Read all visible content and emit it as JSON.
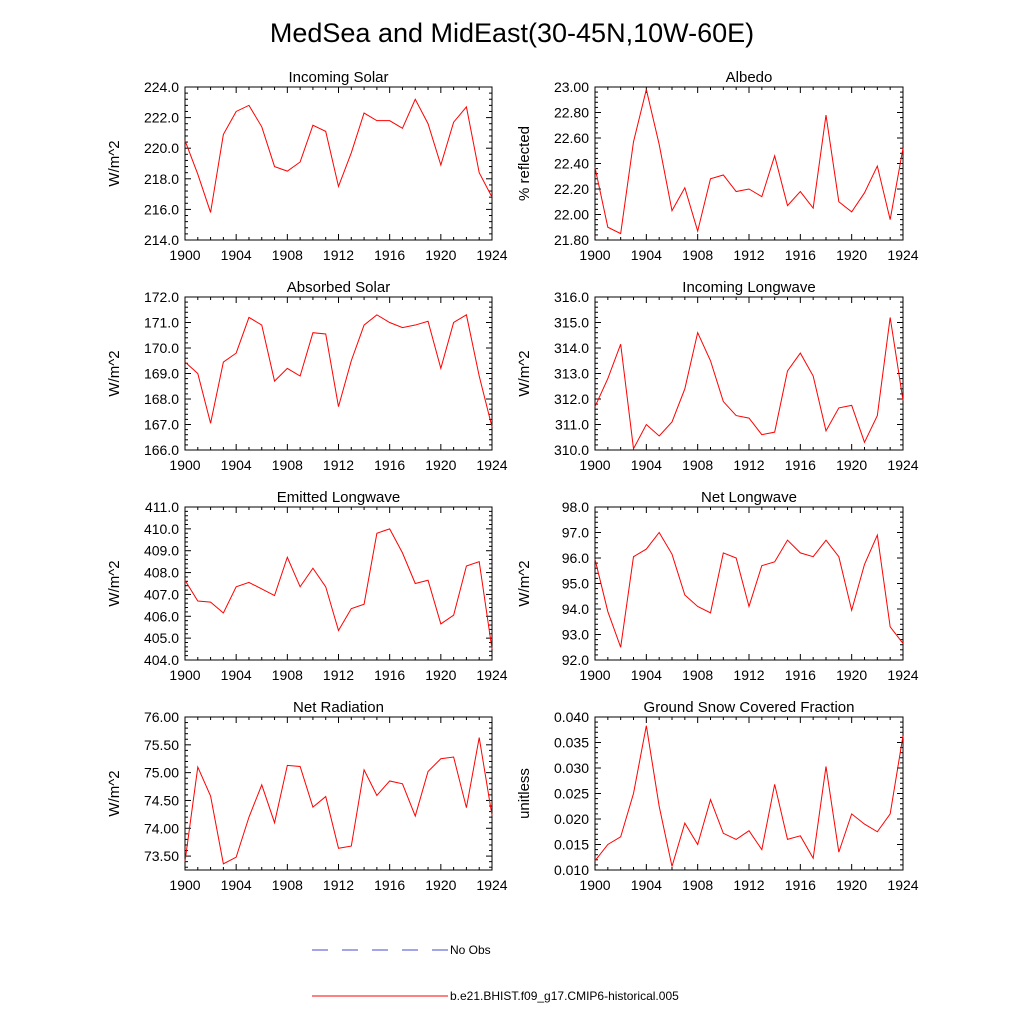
{
  "title": "MedSea and MidEast(30-45N,10W-60E)",
  "colors": {
    "model": "#ff0000",
    "obs": "#4a4ad0",
    "axis": "#000000"
  },
  "legend": {
    "obs_label": "No Obs",
    "model_label": "b.e21.BHIST.f09_g17.CMIP6-historical.005"
  },
  "chart_data": [
    {
      "type": "line",
      "title": "Incoming Solar",
      "ylabel": "W/m^2",
      "xlim": [
        1900,
        1924
      ],
      "ylim": [
        214,
        224
      ],
      "xticks": [
        1900,
        1904,
        1908,
        1912,
        1916,
        1920,
        1924
      ],
      "yticks": [
        214,
        216,
        218,
        220,
        222,
        224
      ],
      "yfmt": 1,
      "x": [
        1900,
        1901,
        1902,
        1903,
        1904,
        1905,
        1906,
        1907,
        1908,
        1909,
        1910,
        1911,
        1912,
        1913,
        1914,
        1915,
        1916,
        1917,
        1918,
        1919,
        1920,
        1921,
        1922,
        1923,
        1924
      ],
      "series": [
        {
          "name": "b.e21.BHIST.f09_g17.CMIP6-historical.005",
          "values": [
            220.5,
            218.3,
            215.8,
            220.9,
            222.4,
            222.8,
            221.4,
            218.8,
            218.5,
            219.1,
            221.5,
            221.1,
            217.5,
            219.7,
            222.3,
            221.8,
            221.8,
            221.3,
            223.2,
            221.6,
            218.9,
            221.7,
            222.7,
            218.4,
            216.8
          ]
        }
      ]
    },
    {
      "type": "line",
      "title": "Albedo",
      "ylabel": "% reflected",
      "xlim": [
        1900,
        1924
      ],
      "ylim": [
        21.8,
        23.0
      ],
      "xticks": [
        1900,
        1904,
        1908,
        1912,
        1916,
        1920,
        1924
      ],
      "yticks": [
        21.8,
        22.0,
        22.2,
        22.4,
        22.6,
        22.8,
        23.0
      ],
      "yfmt": 2,
      "x": [
        1900,
        1901,
        1902,
        1903,
        1904,
        1905,
        1906,
        1907,
        1908,
        1909,
        1910,
        1911,
        1912,
        1913,
        1914,
        1915,
        1916,
        1917,
        1918,
        1919,
        1920,
        1921,
        1922,
        1923,
        1924
      ],
      "series": [
        {
          "name": "b.e21.BHIST.f09_g17.CMIP6-historical.005",
          "values": [
            22.37,
            21.9,
            21.85,
            22.57,
            22.98,
            22.55,
            22.03,
            22.21,
            21.87,
            22.28,
            22.31,
            22.18,
            22.2,
            22.14,
            22.46,
            22.07,
            22.18,
            22.05,
            22.78,
            22.1,
            22.02,
            22.17,
            22.38,
            21.96,
            22.52
          ]
        }
      ]
    },
    {
      "type": "line",
      "title": "Absorbed Solar",
      "ylabel": "W/m^2",
      "xlim": [
        1900,
        1924
      ],
      "ylim": [
        166,
        172
      ],
      "xticks": [
        1900,
        1904,
        1908,
        1912,
        1916,
        1920,
        1924
      ],
      "yticks": [
        166,
        167,
        168,
        169,
        170,
        171,
        172
      ],
      "yfmt": 1,
      "x": [
        1900,
        1901,
        1902,
        1903,
        1904,
        1905,
        1906,
        1907,
        1908,
        1909,
        1910,
        1911,
        1912,
        1913,
        1914,
        1915,
        1916,
        1917,
        1918,
        1919,
        1920,
        1921,
        1922,
        1923,
        1924
      ],
      "series": [
        {
          "name": "b.e21.BHIST.f09_g17.CMIP6-historical.005",
          "values": [
            169.45,
            169.0,
            167.05,
            169.45,
            169.8,
            171.2,
            170.9,
            168.7,
            169.2,
            168.9,
            170.6,
            170.55,
            167.7,
            169.5,
            170.9,
            171.3,
            171.0,
            170.8,
            170.9,
            171.05,
            169.2,
            171.0,
            171.3,
            168.9,
            166.9
          ]
        }
      ]
    },
    {
      "type": "line",
      "title": "Incoming Longwave",
      "ylabel": "W/m^2",
      "xlim": [
        1900,
        1924
      ],
      "ylim": [
        310,
        316
      ],
      "xticks": [
        1900,
        1904,
        1908,
        1912,
        1916,
        1920,
        1924
      ],
      "yticks": [
        310,
        311,
        312,
        313,
        314,
        315,
        316
      ],
      "yfmt": 1,
      "x": [
        1900,
        1901,
        1902,
        1903,
        1904,
        1905,
        1906,
        1907,
        1908,
        1909,
        1910,
        1911,
        1912,
        1913,
        1914,
        1915,
        1916,
        1917,
        1918,
        1919,
        1920,
        1921,
        1922,
        1923,
        1924
      ],
      "series": [
        {
          "name": "b.e21.BHIST.f09_g17.CMIP6-historical.005",
          "values": [
            311.7,
            312.8,
            314.15,
            310.05,
            311.0,
            310.55,
            311.1,
            312.4,
            314.6,
            313.5,
            311.9,
            311.35,
            311.25,
            310.6,
            310.7,
            313.1,
            313.8,
            312.9,
            310.75,
            311.65,
            311.75,
            310.3,
            311.35,
            315.2,
            311.95
          ]
        }
      ]
    },
    {
      "type": "line",
      "title": "Emitted Longwave",
      "ylabel": "W/m^2",
      "xlim": [
        1900,
        1924
      ],
      "ylim": [
        404,
        411
      ],
      "xticks": [
        1900,
        1904,
        1908,
        1912,
        1916,
        1920,
        1924
      ],
      "yticks": [
        404,
        405,
        406,
        407,
        408,
        409,
        410,
        411
      ],
      "yfmt": 1,
      "x": [
        1900,
        1901,
        1902,
        1903,
        1904,
        1905,
        1906,
        1907,
        1908,
        1909,
        1910,
        1911,
        1912,
        1913,
        1914,
        1915,
        1916,
        1917,
        1918,
        1919,
        1920,
        1921,
        1922,
        1923,
        1924
      ],
      "series": [
        {
          "name": "b.e21.BHIST.f09_g17.CMIP6-historical.005",
          "values": [
            407.65,
            406.7,
            406.65,
            406.15,
            407.35,
            407.55,
            407.25,
            406.95,
            408.7,
            407.35,
            408.2,
            407.35,
            405.35,
            406.35,
            406.55,
            409.8,
            410.0,
            408.9,
            407.5,
            407.65,
            405.65,
            406.05,
            408.3,
            408.5,
            404.5
          ]
        }
      ]
    },
    {
      "type": "line",
      "title": "Net Longwave",
      "ylabel": "W/m^2",
      "xlim": [
        1900,
        1924
      ],
      "ylim": [
        92,
        98
      ],
      "xticks": [
        1900,
        1904,
        1908,
        1912,
        1916,
        1920,
        1924
      ],
      "yticks": [
        92,
        93,
        94,
        95,
        96,
        97,
        98
      ],
      "yfmt": 1,
      "x": [
        1900,
        1901,
        1902,
        1903,
        1904,
        1905,
        1906,
        1907,
        1908,
        1909,
        1910,
        1911,
        1912,
        1913,
        1914,
        1915,
        1916,
        1917,
        1918,
        1919,
        1920,
        1921,
        1922,
        1923,
        1924
      ],
      "series": [
        {
          "name": "b.e21.BHIST.f09_g17.CMIP6-historical.005",
          "values": [
            95.95,
            93.9,
            92.5,
            96.05,
            96.35,
            97.0,
            96.15,
            94.55,
            94.1,
            93.85,
            96.2,
            96.0,
            94.1,
            95.7,
            95.85,
            96.7,
            96.2,
            96.05,
            96.7,
            96.05,
            93.95,
            95.75,
            96.9,
            93.3,
            92.65
          ]
        }
      ]
    },
    {
      "type": "line",
      "title": "Net Radiation",
      "ylabel": "W/m^2",
      "xlim": [
        1900,
        1924
      ],
      "ylim": [
        73.25,
        76.0
      ],
      "xticks": [
        1900,
        1904,
        1908,
        1912,
        1916,
        1920,
        1924
      ],
      "yticks": [
        73.5,
        74.0,
        74.5,
        75.0,
        75.5,
        76.0
      ],
      "yfmt": 2,
      "x": [
        1900,
        1901,
        1902,
        1903,
        1904,
        1905,
        1906,
        1907,
        1908,
        1909,
        1910,
        1911,
        1912,
        1913,
        1914,
        1915,
        1916,
        1917,
        1918,
        1919,
        1920,
        1921,
        1922,
        1923,
        1924
      ],
      "series": [
        {
          "name": "b.e21.BHIST.f09_g17.CMIP6-historical.005",
          "values": [
            73.4,
            75.1,
            74.58,
            73.36,
            73.48,
            74.2,
            74.78,
            74.1,
            75.13,
            75.11,
            74.38,
            74.57,
            73.64,
            73.68,
            75.05,
            74.59,
            74.85,
            74.8,
            74.22,
            75.02,
            75.25,
            75.28,
            74.37,
            75.63,
            74.23
          ]
        }
      ]
    },
    {
      "type": "line",
      "title": "Ground Snow Covered Fraction",
      "ylabel": "unitless",
      "xlim": [
        1900,
        1924
      ],
      "ylim": [
        0.01,
        0.04
      ],
      "xticks": [
        1900,
        1904,
        1908,
        1912,
        1916,
        1920,
        1924
      ],
      "yticks": [
        0.01,
        0.015,
        0.02,
        0.025,
        0.03,
        0.035,
        0.04
      ],
      "yfmt": 3,
      "x": [
        1900,
        1901,
        1902,
        1903,
        1904,
        1905,
        1906,
        1907,
        1908,
        1909,
        1910,
        1911,
        1912,
        1913,
        1914,
        1915,
        1916,
        1917,
        1918,
        1919,
        1920,
        1921,
        1922,
        1923,
        1924
      ],
      "series": [
        {
          "name": "b.e21.BHIST.f09_g17.CMIP6-historical.005",
          "values": [
            0.0118,
            0.015,
            0.0165,
            0.025,
            0.0383,
            0.0225,
            0.0107,
            0.0192,
            0.015,
            0.0238,
            0.0172,
            0.016,
            0.0177,
            0.014,
            0.0268,
            0.016,
            0.0167,
            0.0123,
            0.0303,
            0.0135,
            0.021,
            0.019,
            0.0175,
            0.021,
            0.0363
          ]
        }
      ]
    }
  ]
}
